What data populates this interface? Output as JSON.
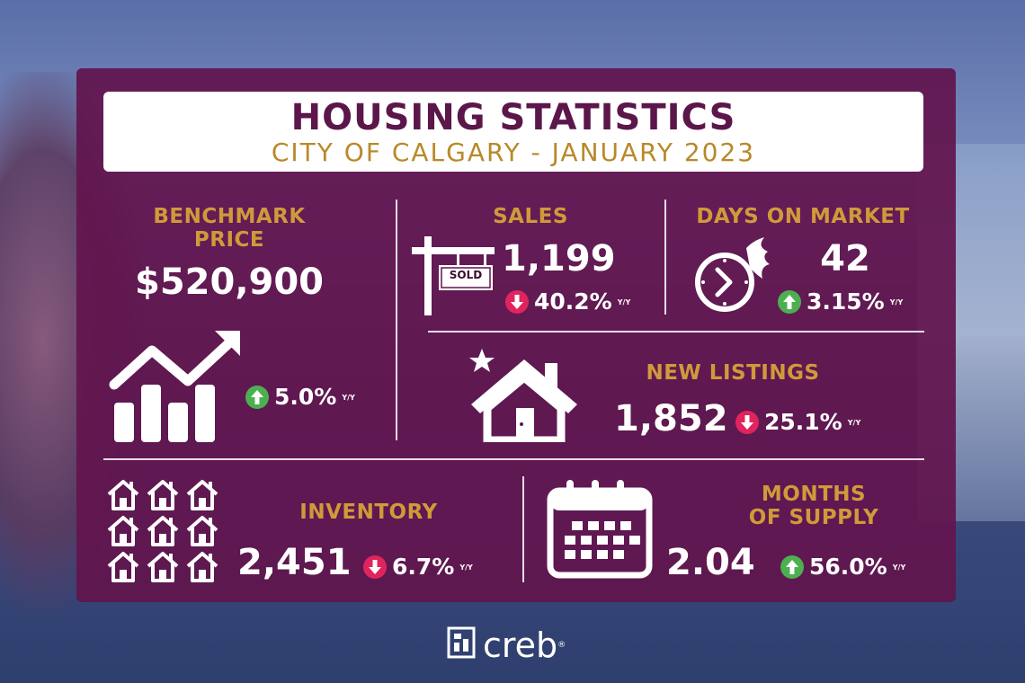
{
  "header": {
    "title": "HOUSING STATISTICS",
    "subtitle": "CITY OF CALGARY - JANUARY 2023"
  },
  "benchmark": {
    "label_line1": "BENCHMARK",
    "label_line2": "PRICE",
    "value": "$520,900",
    "change": "5.0%",
    "direction": "up",
    "suffix": "Y/Y",
    "icon": "growth-chart-icon"
  },
  "sales": {
    "label": "SALES",
    "value": "1,199",
    "change": "40.2%",
    "direction": "down",
    "suffix": "Y/Y",
    "sign_text": "SOLD",
    "icon": "sold-sign-icon"
  },
  "days_on_market": {
    "label": "DAYS ON MARKET",
    "value": "42",
    "change": "3.15%",
    "direction": "up",
    "suffix": "Y/Y",
    "icon": "fast-clock-icon"
  },
  "new_listings": {
    "label": "NEW LISTINGS",
    "value": "1,852",
    "change": "25.1%",
    "direction": "down",
    "suffix": "Y/Y",
    "icon": "new-house-icon"
  },
  "inventory": {
    "label": "INVENTORY",
    "value": "2,451",
    "change": "6.7%",
    "direction": "down",
    "suffix": "Y/Y",
    "icon": "houses-grid-icon"
  },
  "months_of_supply": {
    "label_line1": "MONTHS",
    "label_line2": "OF SUPPLY",
    "value": "2.04",
    "change": "56.0%",
    "direction": "up",
    "suffix": "Y/Y",
    "icon": "calendar-icon"
  },
  "footer": {
    "logo_text": "creb",
    "registered": "®"
  },
  "colors": {
    "panel": "#62144e",
    "title": "#5b164a",
    "gold": "#d09a3a",
    "up": "#4caf50",
    "down": "#e0245e"
  }
}
